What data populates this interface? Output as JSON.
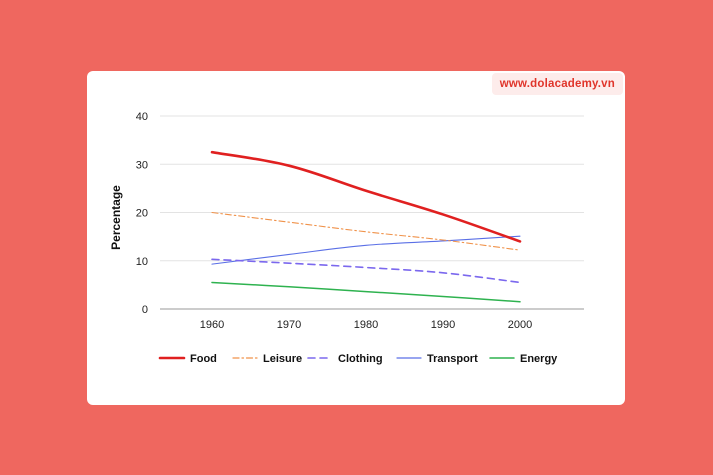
{
  "watermark": "www.dolacademy.vn",
  "chart_data": {
    "type": "line",
    "title": "",
    "xlabel": "",
    "ylabel": "Percentage",
    "x": [
      "1960",
      "1970",
      "1980",
      "1990",
      "2000"
    ],
    "ylim": [
      0,
      40
    ],
    "yticks": [
      "0",
      "10",
      "20",
      "30",
      "40"
    ],
    "grid": "horizontal",
    "legend_position": "bottom",
    "series": [
      {
        "name": "Food",
        "values": [
          32.5,
          29.7,
          24.5,
          19.6,
          14
        ],
        "color": "#e02020",
        "style": "solid-thick"
      },
      {
        "name": "Leisure",
        "values": [
          20,
          18,
          16,
          14.3,
          12.2
        ],
        "color": "#f0924a",
        "style": "dash-dot"
      },
      {
        "name": "Clothing",
        "values": [
          10.3,
          9.5,
          8.6,
          7.5,
          5.5
        ],
        "color": "#7b68ee",
        "style": "dashed"
      },
      {
        "name": "Transport",
        "values": [
          9.3,
          11.3,
          13.2,
          14.1,
          15.1
        ],
        "color": "#5a6fe6",
        "style": "solid-thin"
      },
      {
        "name": "Energy",
        "values": [
          5.5,
          4.6,
          3.6,
          2.6,
          1.5
        ],
        "color": "#2eb24f",
        "style": "solid"
      }
    ]
  }
}
